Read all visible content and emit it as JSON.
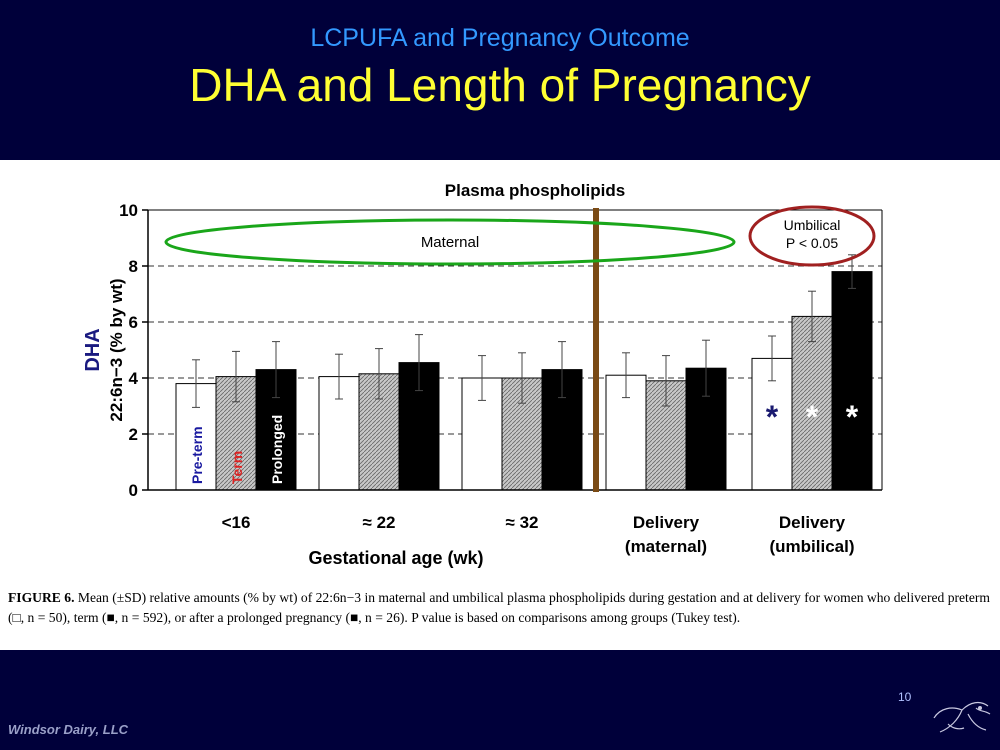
{
  "slide": {
    "subtitle": "LCPUFA and Pregnancy Outcome",
    "title": "DHA and Length of Pregnancy",
    "page_number": "10",
    "footer": "Windsor Dairy, LLC",
    "caption": {
      "lead": "FIGURE 6.",
      "text": "Mean (±SD) relative amounts (% by wt) of 22:6n−3 in maternal and umbilical plasma phospholipids during gestation and at delivery for women who delivered preterm (□, n = 50), term (■, n = 592), or after a prolonged pregnancy (■, n = 26). P value is based on comparisons among groups (Tukey test)."
    }
  },
  "chart_data": {
    "type": "bar",
    "title": "Plasma phospholipids",
    "ylabel_main": "DHA",
    "ylabel": "22:6n−3 (% by wt)",
    "xlabel": "Gestational age (wk)",
    "ylim": [
      0,
      10
    ],
    "yticks": [
      "0",
      "2",
      "4",
      "6",
      "8",
      "10"
    ],
    "dashed_gridlines": [
      2,
      4,
      6,
      8
    ],
    "categories": [
      "<16",
      "≈ 22",
      "≈ 32",
      "Delivery (maternal)",
      "Delivery (umbilical)"
    ],
    "series": [
      {
        "name": "Pre-term",
        "color": "#ffffff",
        "values": [
          3.8,
          4.05,
          4.0,
          4.1,
          4.7
        ],
        "sd": [
          0.85,
          0.8,
          0.8,
          0.8,
          0.8
        ]
      },
      {
        "name": "Term",
        "color": "#bbbbbb",
        "values": [
          4.05,
          4.15,
          4.0,
          3.9,
          6.2
        ],
        "sd": [
          0.9,
          0.9,
          0.9,
          0.9,
          0.9
        ]
      },
      {
        "name": "Prolonged",
        "color": "#000000",
        "values": [
          4.3,
          4.55,
          4.3,
          4.35,
          7.8
        ],
        "sd": [
          1.0,
          1.0,
          1.0,
          1.0,
          0.6
        ]
      }
    ],
    "series_label_colors": [
      "#1a1aa0",
      "#dd2222",
      "#ffffff"
    ],
    "significance_markers": [
      "*",
      "*",
      "*"
    ],
    "annotations": {
      "maternal_oval": "Maternal",
      "umbilical_line1": "Umbilical",
      "umbilical_line2": "P < 0.05"
    },
    "colors": {
      "maternal_oval": "#1aa61a",
      "umbilical_oval": "#a02020",
      "divider": "#7a4a14"
    }
  }
}
